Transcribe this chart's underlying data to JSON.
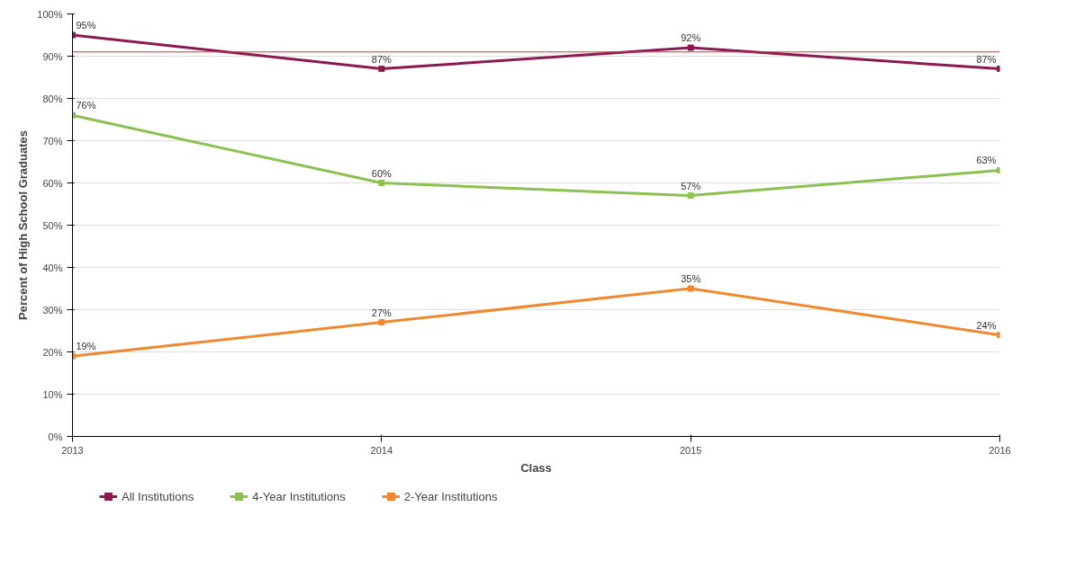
{
  "chart_data": {
    "type": "line",
    "xlabel": "Class",
    "ylabel": "Percent of High School Graduates",
    "x": [
      2013,
      2014,
      2015,
      2016
    ],
    "xlim": [
      2013,
      2016
    ],
    "xticks": [
      2013,
      2014,
      2015,
      2016
    ],
    "ylim": [
      0,
      100
    ],
    "yticks": [
      {
        "value": 0,
        "label": "0%"
      },
      {
        "value": 10,
        "label": "10%"
      },
      {
        "value": 20,
        "label": "20%"
      },
      {
        "value": 30,
        "label": "30%"
      },
      {
        "value": 40,
        "label": "40%"
      },
      {
        "value": 50,
        "label": "50%"
      },
      {
        "value": 60,
        "label": "60%"
      },
      {
        "value": 70,
        "label": "70%"
      },
      {
        "value": 80,
        "label": "80%"
      },
      {
        "value": 90,
        "label": "90%"
      },
      {
        "value": 100,
        "label": "100%"
      }
    ],
    "series": [
      {
        "name": "All Institutions",
        "color": "#8b1a4f",
        "values": [
          95,
          87,
          92,
          87
        ],
        "value_labels": [
          "95%",
          "87%",
          "92%",
          "87%"
        ]
      },
      {
        "name": "4-Year Institutions",
        "color": "#8cc152",
        "values": [
          76,
          60,
          57,
          63
        ],
        "value_labels": [
          "76%",
          "60%",
          "57%",
          "63%"
        ]
      },
      {
        "name": "2-Year Institutions",
        "color": "#f0882f",
        "values": [
          19,
          27,
          35,
          24
        ],
        "value_labels": [
          "19%",
          "27%",
          "35%",
          "24%"
        ]
      }
    ],
    "ref_lines": [
      {
        "axis": "y",
        "value": 91,
        "color": "#e03030"
      }
    ],
    "grid": "y",
    "legend": "bottom",
    "marker": "square",
    "line_style": "solid"
  }
}
